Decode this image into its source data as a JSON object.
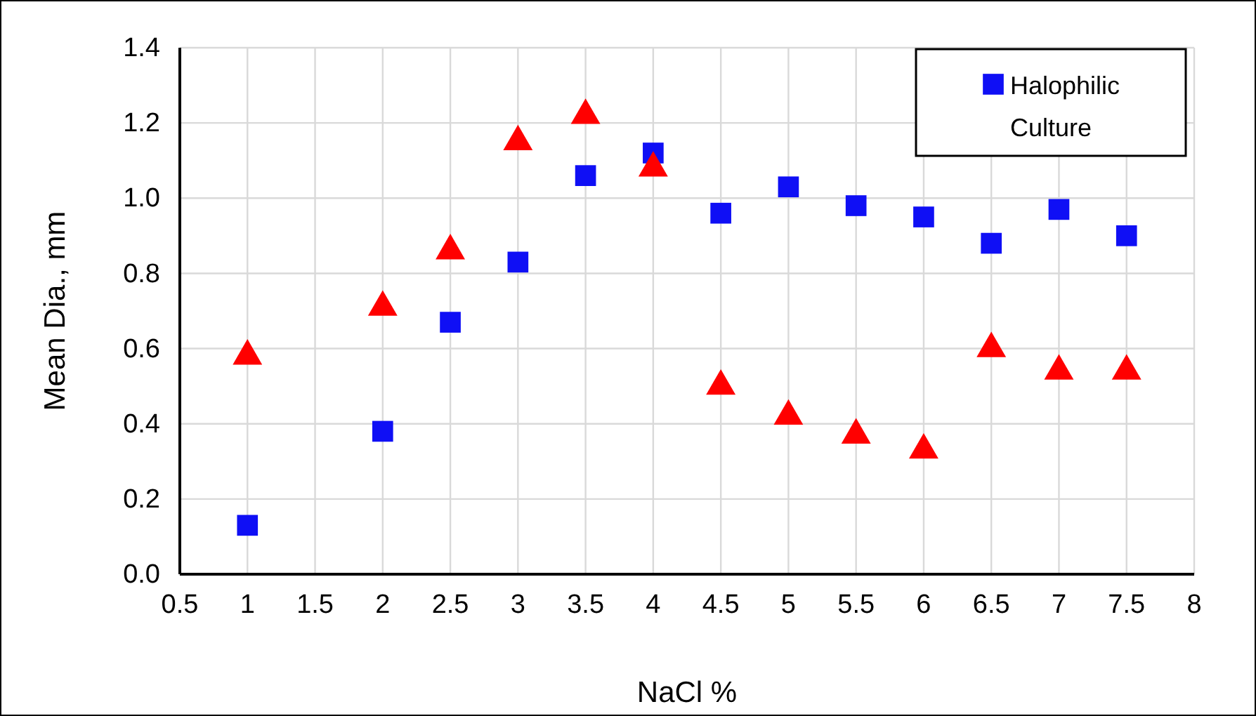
{
  "chart_data": {
    "type": "scatter",
    "xlabel": "NaCl %",
    "ylabel": "Mean Dia., mm",
    "xlim": [
      0.5,
      8
    ],
    "xticks": [
      0.5,
      1,
      1.5,
      2,
      2.5,
      3,
      3.5,
      4,
      4.5,
      5,
      5.5,
      6,
      6.5,
      7,
      7.5,
      8
    ],
    "ylim": [
      0,
      1.4
    ],
    "yticks": [
      {
        "value": 0,
        "label": "0.0"
      },
      0.2,
      0.4,
      0.6,
      0.8,
      {
        "value": 1,
        "label": "1.0"
      },
      1.2,
      1.4
    ],
    "grid": true,
    "legend": "top right",
    "series": [
      {
        "name": "Halophilic Culture",
        "color": "#0f0ff5",
        "marker": "square",
        "x": [
          1,
          2,
          2.5,
          3,
          3.5,
          4,
          4.5,
          5,
          5.5,
          6,
          6.5,
          7,
          7.5
        ],
        "values": [
          0.13,
          0.38,
          0.67,
          0.83,
          1.06,
          1.12,
          0.96,
          1.03,
          0.98,
          0.95,
          0.88,
          0.97,
          0.9
        ]
      },
      {
        "color": "#ff0000",
        "marker": "triangle",
        "x": [
          1,
          2,
          2.5,
          3,
          3.5,
          4,
          4.5,
          5,
          5.5,
          6,
          6.5,
          7,
          7.5
        ],
        "values": [
          0.58,
          0.71,
          0.86,
          1.15,
          1.22,
          1.08,
          0.5,
          0.42,
          0.37,
          0.33,
          0.6,
          0.54,
          0.54
        ]
      }
    ]
  }
}
